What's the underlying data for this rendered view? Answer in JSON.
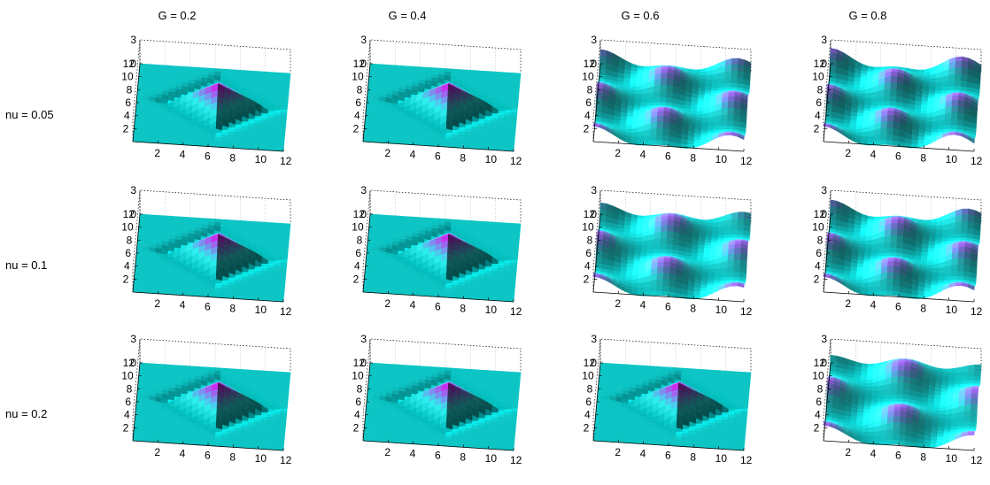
{
  "chart_data": {
    "type": "surface",
    "column_titles": [
      "G = 0.2",
      "G = 0.4",
      "G = 0.6",
      "G = 0.8"
    ],
    "row_labels": [
      "nu = 0.05",
      "nu = 0.1",
      "nu = 0.2"
    ],
    "axes": {
      "x_ticks": [
        "2",
        "4",
        "6",
        "8",
        "10",
        "12"
      ],
      "y_ticks": [
        "2",
        "4",
        "6",
        "8",
        "10",
        "12"
      ],
      "z_ticks": [
        "0",
        "3"
      ],
      "xlim": [
        0,
        12
      ],
      "ylim": [
        0,
        12
      ],
      "zlim": [
        0,
        3
      ]
    },
    "colormap": [
      "#00cccc",
      "#33ffff",
      "#ff00ff"
    ],
    "panels": [
      {
        "G": 0.2,
        "nu": 0.05,
        "pattern": "single-peak"
      },
      {
        "G": 0.4,
        "nu": 0.05,
        "pattern": "single-peak"
      },
      {
        "G": 0.6,
        "nu": 0.05,
        "pattern": "hexagonal-lattice"
      },
      {
        "G": 0.8,
        "nu": 0.05,
        "pattern": "hexagonal-lattice"
      },
      {
        "G": 0.2,
        "nu": 0.1,
        "pattern": "single-peak"
      },
      {
        "G": 0.4,
        "nu": 0.1,
        "pattern": "single-peak"
      },
      {
        "G": 0.6,
        "nu": 0.1,
        "pattern": "hexagonal-lattice"
      },
      {
        "G": 0.8,
        "nu": 0.1,
        "pattern": "hexagonal-lattice"
      },
      {
        "G": 0.2,
        "nu": 0.2,
        "pattern": "single-peak"
      },
      {
        "G": 0.4,
        "nu": 0.2,
        "pattern": "single-peak"
      },
      {
        "G": 0.6,
        "nu": 0.2,
        "pattern": "single-peak"
      },
      {
        "G": 0.8,
        "nu": 0.2,
        "pattern": "hexagonal-lattice"
      }
    ]
  }
}
